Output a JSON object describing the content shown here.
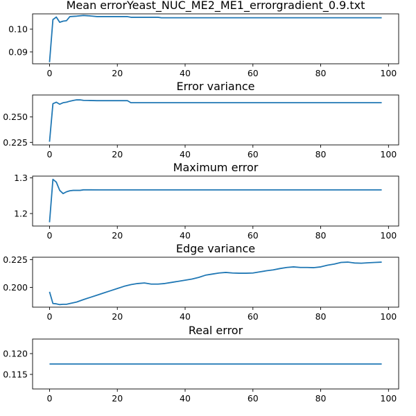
{
  "figure": {
    "background": "#ffffff",
    "line_color": "#1f77b4"
  },
  "chart_data": [
    {
      "type": "line",
      "title": "Mean errorYeast_NUC_ME2_ME1_errorgradient_0.9.txt",
      "xlim": [
        -5,
        103
      ],
      "ylim": [
        0.0848,
        0.1067
      ],
      "xticks": [
        0,
        20,
        40,
        60,
        80,
        100
      ],
      "yticks": [
        0.09,
        0.1
      ],
      "ytick_labels": [
        "0.09",
        "0.10"
      ],
      "x": [
        0,
        1,
        2,
        3,
        4,
        5,
        6,
        8,
        10,
        12,
        14,
        16,
        18,
        20,
        22,
        23,
        24,
        26,
        28,
        30,
        32,
        33,
        36,
        40,
        50,
        60,
        70,
        80,
        90,
        98
      ],
      "values": [
        0.0855,
        0.1042,
        0.1053,
        0.103,
        0.1035,
        0.1037,
        0.1055,
        0.1057,
        0.106,
        0.1058,
        0.1055,
        0.1055,
        0.1055,
        0.1055,
        0.1055,
        0.1055,
        0.1052,
        0.1052,
        0.1052,
        0.1052,
        0.1052,
        0.105,
        0.105,
        0.105,
        0.105,
        0.105,
        0.105,
        0.105,
        0.105,
        0.105
      ]
    },
    {
      "type": "line",
      "title": "Error variance",
      "xlim": [
        -5,
        103
      ],
      "ylim": [
        0.2225,
        0.2716
      ],
      "xticks": [
        0,
        20,
        40,
        60,
        80,
        100
      ],
      "yticks": [
        0.225,
        0.25
      ],
      "ytick_labels": [
        "0.225",
        "0.250"
      ],
      "x": [
        0,
        1,
        2,
        3,
        4,
        5,
        6,
        7,
        8,
        9,
        10,
        12,
        14,
        16,
        18,
        20,
        22,
        23,
        24,
        26,
        30,
        40,
        50,
        60,
        70,
        80,
        90,
        98
      ],
      "values": [
        0.2256,
        0.263,
        0.2645,
        0.2625,
        0.264,
        0.2645,
        0.2655,
        0.2662,
        0.2668,
        0.2668,
        0.2663,
        0.2662,
        0.266,
        0.266,
        0.266,
        0.266,
        0.266,
        0.266,
        0.264,
        0.264,
        0.264,
        0.264,
        0.264,
        0.264,
        0.264,
        0.264,
        0.264,
        0.264
      ]
    },
    {
      "type": "line",
      "title": "Maximum error",
      "xlim": [
        -5,
        103
      ],
      "ylim": [
        1.165,
        1.305
      ],
      "xticks": [
        0,
        20,
        40,
        60,
        80,
        100
      ],
      "yticks": [
        1.2,
        1.3
      ],
      "ytick_labels": [
        "1.2",
        "1.3"
      ],
      "x": [
        0,
        1,
        2,
        3,
        4,
        5,
        6,
        7,
        8,
        9,
        10,
        12,
        15,
        20,
        30,
        40,
        50,
        60,
        70,
        80,
        90,
        98
      ],
      "values": [
        1.1755,
        1.296,
        1.288,
        1.265,
        1.256,
        1.261,
        1.264,
        1.265,
        1.265,
        1.265,
        1.2665,
        1.2665,
        1.2663,
        1.2663,
        1.2663,
        1.2663,
        1.2663,
        1.2663,
        1.2663,
        1.2663,
        1.2663,
        1.2663
      ]
    },
    {
      "type": "line",
      "title": "Edge variance",
      "xlim": [
        -5,
        103
      ],
      "ylim": [
        0.1822,
        0.2272
      ],
      "xticks": [
        0,
        20,
        40,
        60,
        80,
        100
      ],
      "yticks": [
        0.2,
        0.225
      ],
      "ytick_labels": [
        "0.200",
        "0.225"
      ],
      "x": [
        0,
        1,
        2,
        3,
        4,
        5,
        6,
        8,
        10,
        12,
        14,
        16,
        18,
        20,
        22,
        24,
        26,
        28,
        30,
        32,
        34,
        36,
        38,
        40,
        42,
        44,
        46,
        48,
        50,
        52,
        54,
        56,
        58,
        60,
        62,
        64,
        66,
        68,
        70,
        72,
        74,
        76,
        78,
        80,
        82,
        84,
        86,
        88,
        90,
        92,
        94,
        96,
        98
      ],
      "values": [
        0.196,
        0.1855,
        0.1852,
        0.1845,
        0.1848,
        0.1848,
        0.1855,
        0.1868,
        0.189,
        0.191,
        0.193,
        0.195,
        0.197,
        0.199,
        0.201,
        0.2025,
        0.2035,
        0.204,
        0.203,
        0.203,
        0.2035,
        0.2045,
        0.2055,
        0.2065,
        0.2075,
        0.209,
        0.211,
        0.212,
        0.213,
        0.2135,
        0.213,
        0.2128,
        0.2128,
        0.213,
        0.214,
        0.215,
        0.2158,
        0.217,
        0.218,
        0.2185,
        0.218,
        0.218,
        0.2178,
        0.2185,
        0.22,
        0.221,
        0.2225,
        0.2228,
        0.222,
        0.2218,
        0.2222,
        0.2225,
        0.2228
      ]
    },
    {
      "type": "line",
      "title": "Real error",
      "xlim": [
        -5,
        103
      ],
      "ylim": [
        0.1115,
        0.1235
      ],
      "xticks": [
        0,
        20,
        40,
        60,
        80,
        100
      ],
      "yticks": [
        0.115,
        0.12
      ],
      "ytick_labels": [
        "0.115",
        "0.120"
      ],
      "x": [
        0,
        98
      ],
      "values": [
        0.1175,
        0.1175
      ]
    }
  ]
}
